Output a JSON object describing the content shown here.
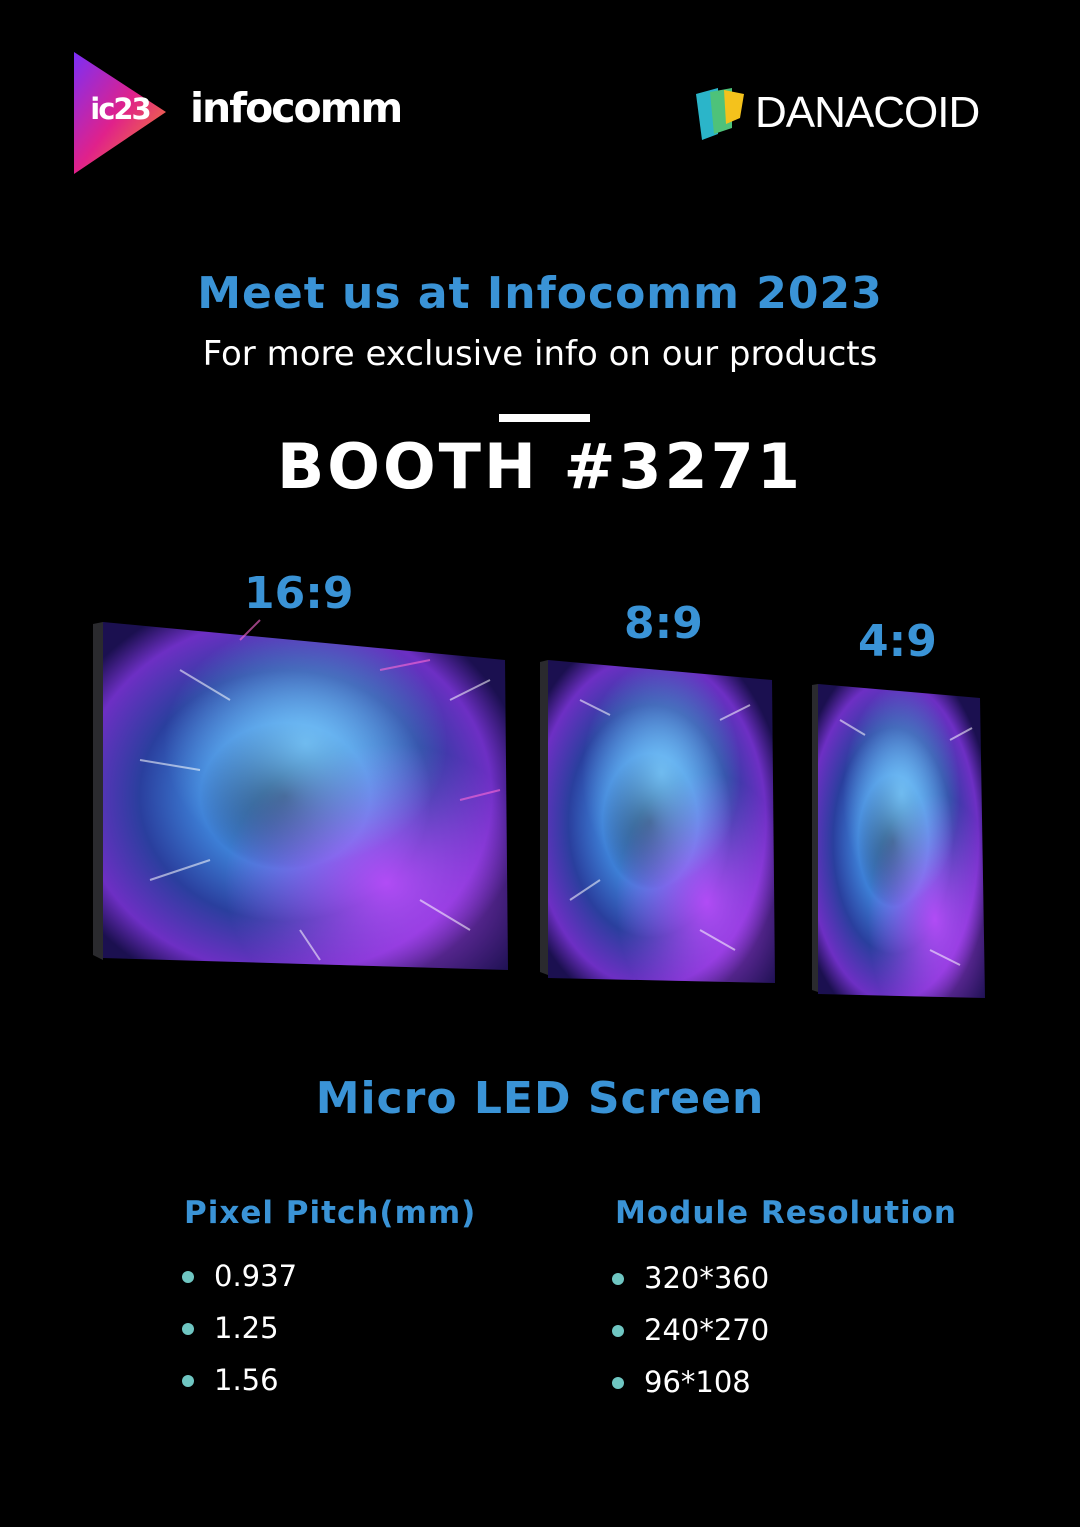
{
  "header": {
    "event_logo_text": "ic23",
    "event_name": "infocomm",
    "brand_name": "DANACOID"
  },
  "hero": {
    "headline": "Meet us at Infocomm 2023",
    "subline": "For more exclusive info on our products",
    "booth": "BOOTH #3271"
  },
  "screens": [
    {
      "ratio": "16:9"
    },
    {
      "ratio": "8:9"
    },
    {
      "ratio": "4:9"
    }
  ],
  "product": {
    "title": "Micro LED Screen",
    "pixel_pitch": {
      "title": "Pixel Pitch(mm)",
      "items": [
        "0.937",
        "1.25",
        "1.56"
      ]
    },
    "module_resolution": {
      "title": "Module Resolution",
      "items": [
        "320*360",
        "240*270",
        "96*108"
      ]
    }
  },
  "colors": {
    "background": "#000000",
    "accent_blue": "#3a93d6",
    "bullet_teal": "#6fc6c2",
    "text": "#ffffff"
  }
}
